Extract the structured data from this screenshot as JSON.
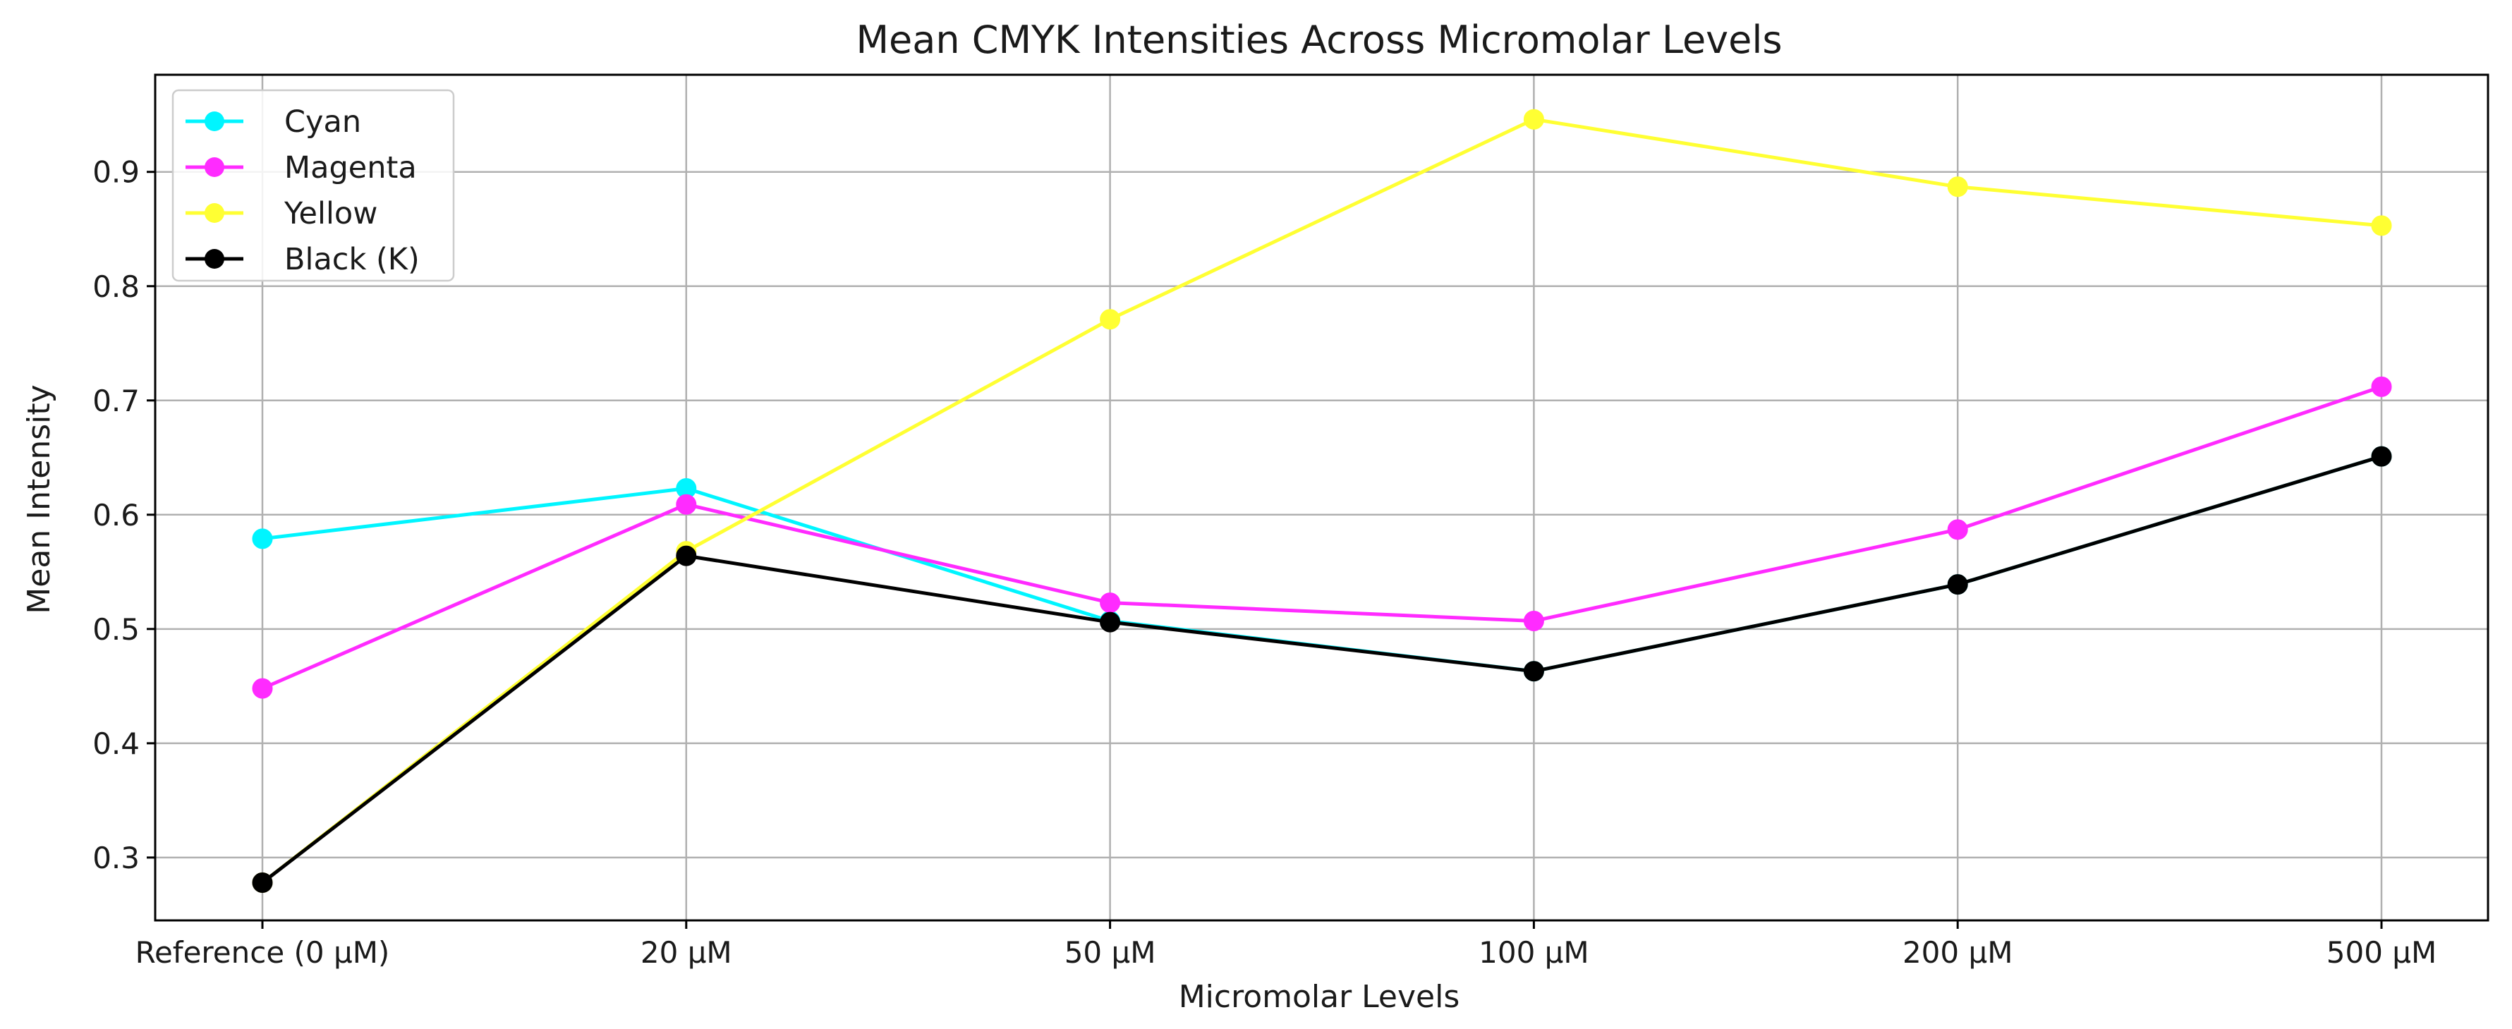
{
  "chart_data": {
    "type": "line",
    "title": "Mean CMYK Intensities Across Micromolar Levels",
    "xlabel": "Micromolar Levels",
    "ylabel": "Mean Intensity",
    "categories": [
      "Reference (0 μM)",
      "20 μM",
      "50 μM",
      "100 μM",
      "200 μM",
      "500 μM"
    ],
    "ylim": [
      0.245,
      0.985
    ],
    "yticks": [
      0.3,
      0.4,
      0.5,
      0.6,
      0.7,
      0.8,
      0.9
    ],
    "ytick_labels": [
      "0.3",
      "0.4",
      "0.5",
      "0.6",
      "0.7",
      "0.8",
      "0.9"
    ],
    "grid": true,
    "legend_position": "top-left",
    "series": [
      {
        "name": "Cyan",
        "color": "#00f5ff",
        "values": [
          0.579,
          0.623,
          0.507,
          0.463,
          0.539,
          0.651
        ]
      },
      {
        "name": "Magenta",
        "color": "#ff2bff",
        "values": [
          0.448,
          0.609,
          0.523,
          0.507,
          0.587,
          0.712
        ]
      },
      {
        "name": "Yellow",
        "color": "#ffff33",
        "values": [
          0.278,
          0.568,
          0.771,
          0.946,
          0.887,
          0.853
        ]
      },
      {
        "name": "Black (K)",
        "color": "#000000",
        "values": [
          0.278,
          0.564,
          0.506,
          0.463,
          0.539,
          0.651
        ]
      }
    ]
  }
}
